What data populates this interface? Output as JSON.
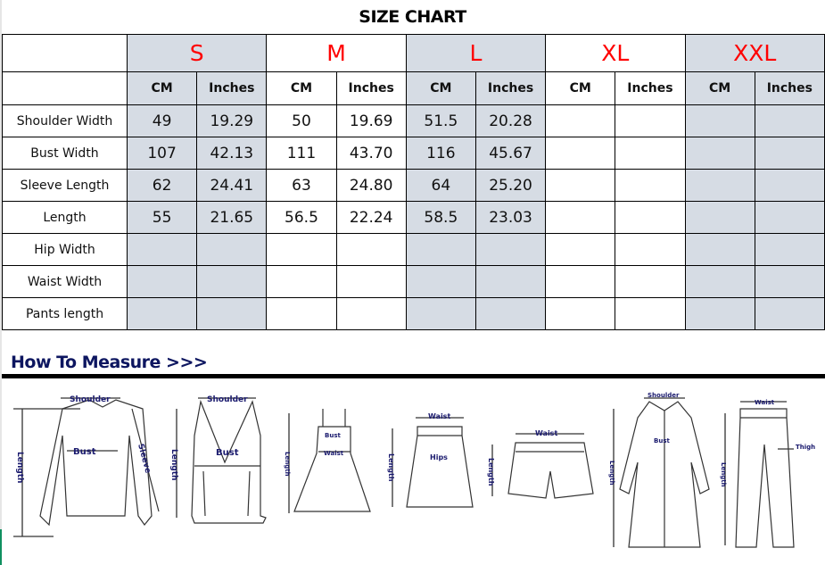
{
  "title": "SIZE CHART",
  "sizes": [
    "S",
    "M",
    "L",
    "XL",
    "XXL"
  ],
  "units": {
    "cm": "CM",
    "inches": "Inches"
  },
  "rows": [
    {
      "label": "Shoulder Width",
      "values": [
        "49",
        "19.29",
        "50",
        "19.69",
        "51.5",
        "20.28",
        "",
        "",
        "",
        ""
      ]
    },
    {
      "label": "Bust Width",
      "values": [
        "107",
        "42.13",
        "111",
        "43.70",
        "116",
        "45.67",
        "",
        "",
        "",
        ""
      ]
    },
    {
      "label": "Sleeve Length",
      "values": [
        "62",
        "24.41",
        "63",
        "24.80",
        "64",
        "25.20",
        "",
        "",
        "",
        ""
      ]
    },
    {
      "label": "Length",
      "values": [
        "55",
        "21.65",
        "56.5",
        "22.24",
        "58.5",
        "23.03",
        "",
        "",
        "",
        ""
      ]
    },
    {
      "label": "Hip Width",
      "values": [
        "",
        "",
        "",
        "",
        "",
        "",
        "",
        "",
        "",
        ""
      ]
    },
    {
      "label": "Waist Width",
      "values": [
        "",
        "",
        "",
        "",
        "",
        "",
        "",
        "",
        "",
        ""
      ]
    },
    {
      "label": "Pants length",
      "values": [
        "",
        "",
        "",
        "",
        "",
        "",
        "",
        "",
        "",
        ""
      ]
    }
  ],
  "colors": {
    "shaded": "#d6dce4",
    "size_label": "#ff0000",
    "diagram_label": "#1a1a6e"
  },
  "measure": {
    "heading": "How To Measure >>>",
    "labels": {
      "shoulder": "Shoulder",
      "bust": "Bust",
      "sleeve": "Sleeve",
      "length": "Length",
      "waist": "Waist",
      "hips": "Hips",
      "thigh": "Thigh"
    }
  }
}
